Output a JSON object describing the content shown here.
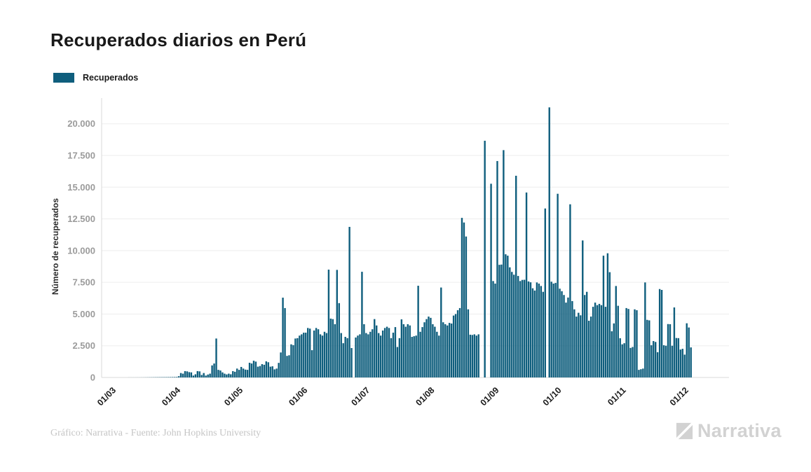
{
  "page": {
    "title": "Recuperados diarios en Perú"
  },
  "legend": {
    "label": "Recuperados"
  },
  "footer": {
    "credit": "Gráfico: Narrativa - Fuente: John Hopkins University",
    "brand": "Narrativa",
    "brand_icon": "narrativa-mark"
  },
  "colors": {
    "bar": "#0f5e7d",
    "grid": "#ededed",
    "spine": "#d9d9d9",
    "y_tick_label": "#9b9b9b",
    "x_tick_label": "#1c1c1c",
    "title": "#191919",
    "footer_text": "#c5c5c5",
    "logo": "#d2d2d2"
  },
  "chart_data": {
    "type": "bar",
    "title": "Recuperados diarios en Perú",
    "xlabel": "",
    "ylabel": "Número de recuperados",
    "ylim": [
      0,
      21750
    ],
    "grid": true,
    "legend_position": "top-left",
    "y_ticks": [
      {
        "value": 0,
        "label": "0"
      },
      {
        "value": 2500,
        "label": "2.500"
      },
      {
        "value": 5000,
        "label": "5.000"
      },
      {
        "value": 7500,
        "label": "7.500"
      },
      {
        "value": 10000,
        "label": "10.000"
      },
      {
        "value": 12500,
        "label": "12.500"
      },
      {
        "value": 15000,
        "label": "15.000"
      },
      {
        "value": 17500,
        "label": "17.500"
      },
      {
        "value": 20000,
        "label": "20.000"
      }
    ],
    "x_ticks": [
      {
        "label": "01/03",
        "day": 0
      },
      {
        "label": "01/04",
        "day": 31
      },
      {
        "label": "01/05",
        "day": 61
      },
      {
        "label": "01/06",
        "day": 92
      },
      {
        "label": "01/07",
        "day": 122
      },
      {
        "label": "01/08",
        "day": 153
      },
      {
        "label": "01/09",
        "day": 184
      },
      {
        "label": "01/10",
        "day": 214
      },
      {
        "label": "01/11",
        "day": 245
      },
      {
        "label": "01/12",
        "day": 275
      }
    ],
    "series": [
      {
        "name": "Recuperados",
        "start_label": "01/03",
        "interval": "daily",
        "values": [
          0,
          0,
          0,
          0,
          0,
          0,
          0,
          2,
          2,
          3,
          3,
          4,
          4,
          5,
          6,
          8,
          10,
          12,
          14,
          16,
          18,
          20,
          22,
          24,
          25,
          26,
          28,
          30,
          32,
          35,
          38,
          100,
          350,
          300,
          500,
          480,
          420,
          400,
          150,
          250,
          500,
          480,
          200,
          350,
          150,
          230,
          300,
          950,
          1100,
          3070,
          600,
          550,
          400,
          300,
          240,
          300,
          250,
          500,
          450,
          700,
          600,
          830,
          700,
          620,
          600,
          1160,
          1100,
          1320,
          1250,
          850,
          900,
          1050,
          1000,
          1270,
          1200,
          850,
          880,
          640,
          700,
          1150,
          1970,
          6290,
          5470,
          1700,
          1750,
          2610,
          2550,
          3070,
          3100,
          3300,
          3400,
          3530,
          3530,
          3900,
          3850,
          2150,
          3700,
          3900,
          3800,
          3400,
          3300,
          3600,
          3500,
          8500,
          4640,
          4600,
          4200,
          8480,
          5860,
          3500,
          2700,
          3200,
          3100,
          11870,
          2320,
          0,
          3150,
          3300,
          3400,
          8330,
          4200,
          3500,
          3400,
          3600,
          3800,
          4600,
          4100,
          3500,
          3300,
          3700,
          3900,
          4000,
          3900,
          3100,
          3530,
          3970,
          2400,
          3100,
          4580,
          4200,
          4000,
          4200,
          4100,
          3200,
          3250,
          3300,
          7230,
          3600,
          3970,
          4350,
          4600,
          4800,
          4700,
          4200,
          4000,
          3600,
          3300,
          7090,
          4350,
          4200,
          4100,
          4300,
          4250,
          4880,
          5000,
          5300,
          5470,
          12580,
          12215,
          11110,
          5370,
          3370,
          3350,
          3400,
          3300,
          3400,
          0,
          0,
          18660,
          0,
          0,
          15270,
          7600,
          7400,
          17060,
          8880,
          8900,
          17920,
          9710,
          9600,
          8680,
          8320,
          8100,
          15900,
          8000,
          7600,
          7690,
          7700,
          14580,
          7570,
          7500,
          7030,
          6850,
          7490,
          7400,
          7210,
          6750,
          13320,
          0,
          21290,
          7550,
          7400,
          7450,
          14480,
          7000,
          6800,
          6500,
          5900,
          6300,
          13650,
          6020,
          5370,
          4800,
          5100,
          4900,
          10800,
          6500,
          6750,
          4470,
          4800,
          5570,
          5900,
          5700,
          5800,
          5700,
          9600,
          5570,
          9790,
          8300,
          3640,
          4260,
          7210,
          5650,
          3090,
          2610,
          2700,
          5470,
          5400,
          2330,
          2400,
          5370,
          5300,
          600,
          650,
          700,
          7490,
          4540,
          4500,
          2540,
          2870,
          2800,
          1990,
          6970,
          6900,
          2540,
          2500,
          4210,
          4200,
          2500,
          5520,
          3110,
          3100,
          2200,
          2260,
          1800,
          4270,
          3940,
          2370
        ]
      }
    ]
  }
}
